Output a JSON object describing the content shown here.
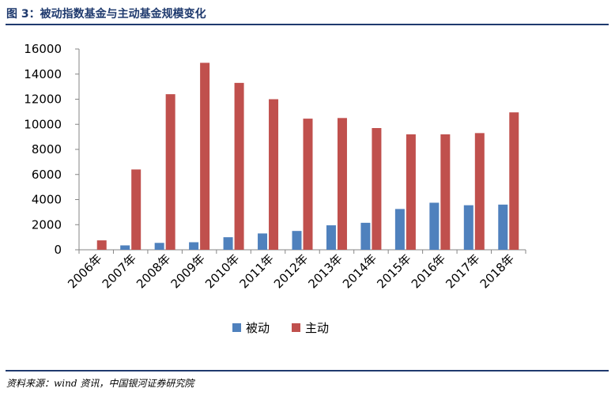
{
  "figure": {
    "title": "图 3：被动指数基金与主动基金规模变化",
    "source": "资料来源：wind 资讯，中国银河证券研究院"
  },
  "colors": {
    "passive": "#4f81bd",
    "active": "#c0504d",
    "axis": "#868686",
    "rule": "#1f3a6e"
  },
  "chart_data": {
    "type": "bar",
    "categories": [
      "2006年",
      "2007年",
      "2008年",
      "2009年",
      "2010年",
      "2011年",
      "2012年",
      "2013年",
      "2014年",
      "2015年",
      "2016年",
      "2017年",
      "2018年"
    ],
    "series": [
      {
        "name": "被动",
        "values": [
          0,
          350,
          550,
          600,
          1000,
          1300,
          1500,
          1950,
          2150,
          3250,
          3750,
          3550,
          3600
        ]
      },
      {
        "name": "主动",
        "values": [
          750,
          6400,
          12400,
          14900,
          13300,
          12000,
          10450,
          10500,
          9700,
          9200,
          9200,
          9300,
          10950
        ]
      }
    ],
    "yticks": [
      "0",
      "2000",
      "4000",
      "6000",
      "8000",
      "10000",
      "12000",
      "14000",
      "16000"
    ],
    "ylim": [
      0,
      16000
    ],
    "grid": false,
    "legend_position": "bottom",
    "title": "",
    "xlabel": "",
    "ylabel": ""
  }
}
